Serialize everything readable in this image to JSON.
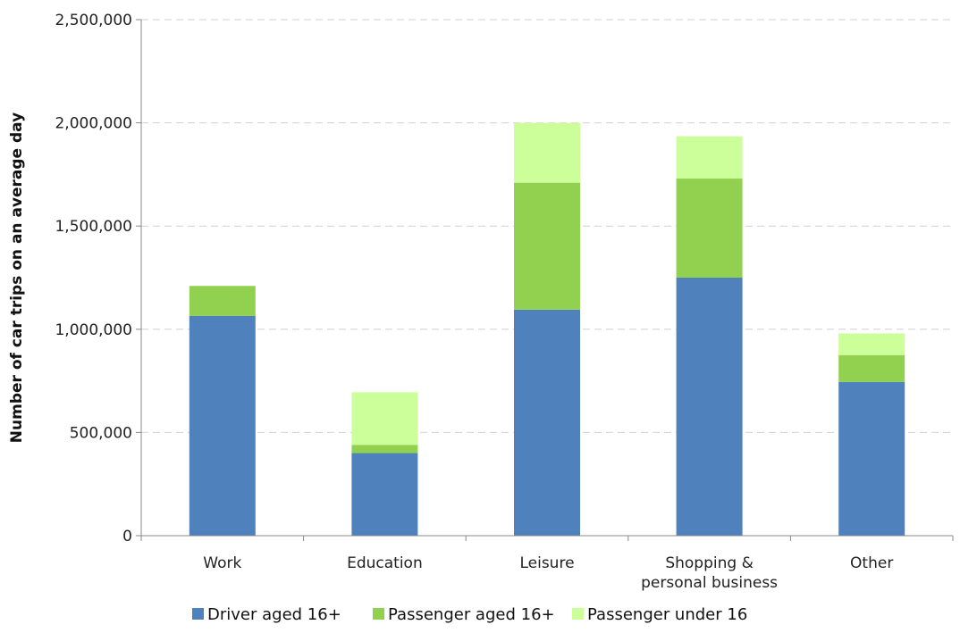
{
  "chart_data": {
    "type": "bar",
    "stacked": true,
    "categories": [
      "Work",
      "Education",
      "Leisure",
      "Shopping &\npersonal business",
      "Other"
    ],
    "series": [
      {
        "name": "Driver aged 16+",
        "color": "#4f81bd",
        "values": [
          1065000,
          400000,
          1095000,
          1250000,
          745000
        ]
      },
      {
        "name": "Passenger aged 16+",
        "color": "#92d050",
        "values": [
          145000,
          40000,
          615000,
          480000,
          130000
        ]
      },
      {
        "name": "Passenger under 16",
        "color": "#ccff99",
        "values": [
          0,
          255000,
          290000,
          205000,
          105000
        ]
      }
    ],
    "title": "",
    "xlabel": "",
    "ylabel": "Number of car trips on an average day",
    "ylim": [
      0,
      2500000
    ],
    "yticks": [
      0,
      500000,
      1000000,
      1500000,
      2000000,
      2500000
    ],
    "ytick_labels": [
      "0",
      "500,000",
      "1,000,000",
      "1,500,000",
      "2,000,000",
      "2,500,000"
    ],
    "grid": true,
    "legend_position": "bottom"
  }
}
